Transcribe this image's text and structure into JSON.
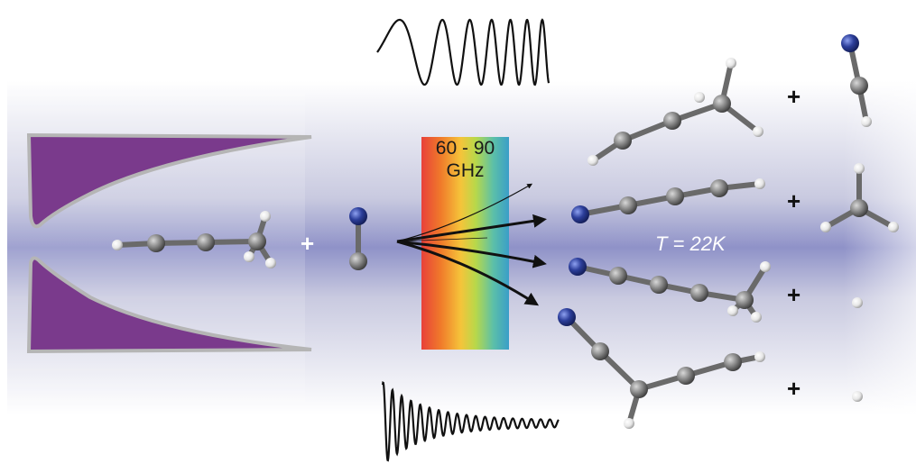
{
  "spectrum": {
    "line1": "60 - 90",
    "line2": "GHz",
    "colors": [
      "#e8413a",
      "#f07a2a",
      "#f5c43a",
      "#b8d84a",
      "#5cc0a8",
      "#3a9ec8"
    ]
  },
  "temperature": "T = 22K",
  "plus_sign": "+",
  "colors": {
    "nozzle": "#7a3a8c",
    "nozzle_edge": "#b5b5b5",
    "beam": "#8f92c8",
    "carbon": "#7a7a7a",
    "nitrogen": "#2c3e9a",
    "hydrogen": "#f2f2f2",
    "arrow": "#111111"
  }
}
